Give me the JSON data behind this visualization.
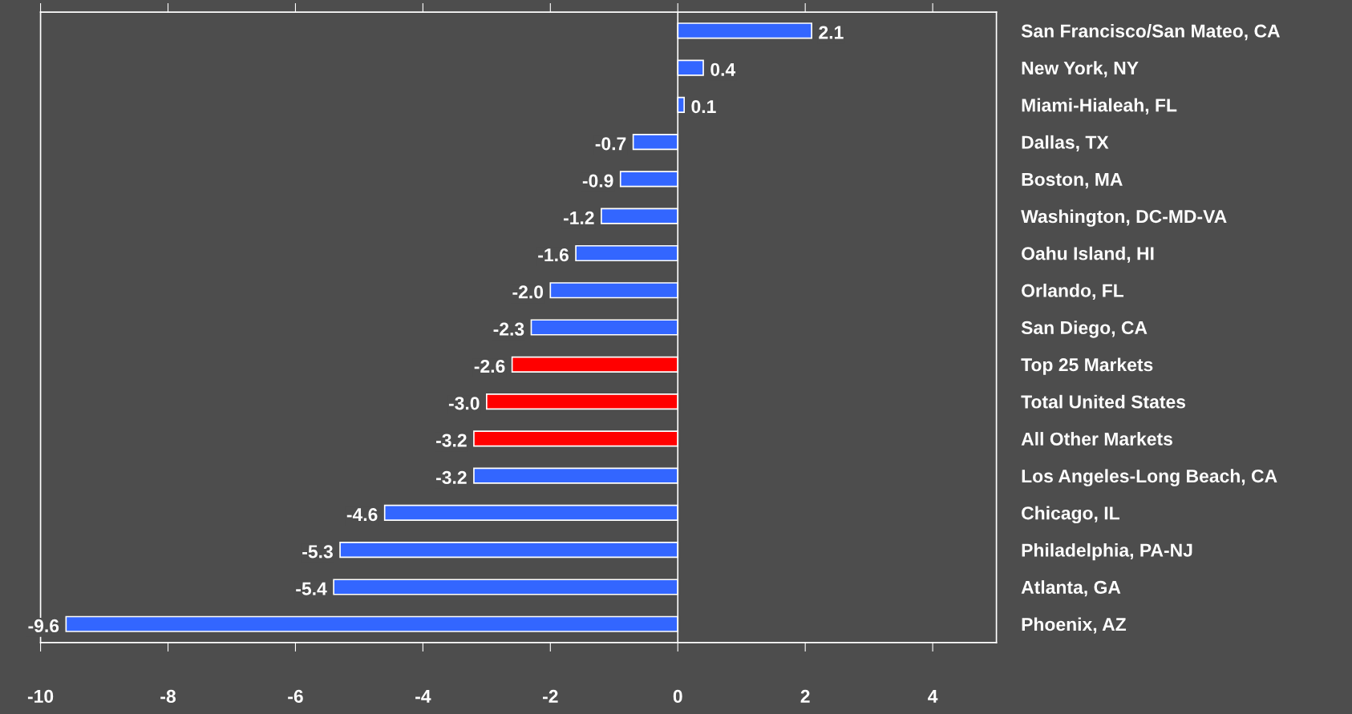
{
  "chart_data": {
    "type": "bar",
    "orientation": "horizontal",
    "categories": [
      "San Francisco/San Mateo, CA",
      "New York, NY",
      "Miami-Hialeah, FL",
      "Dallas, TX",
      "Boston, MA",
      "Washington, DC-MD-VA",
      "Oahu Island, HI",
      "Orlando, FL",
      "San Diego, CA",
      "Top 25 Markets",
      "Total United States",
      "All Other Markets",
      "Los Angeles-Long Beach, CA",
      "Chicago, IL",
      "Philadelphia, PA-NJ",
      "Atlanta, GA",
      "Phoenix, AZ"
    ],
    "values": [
      2.1,
      0.4,
      0.1,
      -0.7,
      -0.9,
      -1.2,
      -1.6,
      -2.0,
      -2.3,
      -2.6,
      -3.0,
      -3.2,
      -3.2,
      -4.6,
      -5.3,
      -5.4,
      -9.6
    ],
    "value_labels": [
      "2.1",
      "0.4",
      "0.1",
      "-0.7",
      "-0.9",
      "-1.2",
      "-1.6",
      "-2.0",
      "-2.3",
      "-2.6",
      "-3.0",
      "-3.2",
      "-3.2",
      "-4.6",
      "-5.3",
      "-5.4",
      "-9.6"
    ],
    "colors": [
      "#3366ff",
      "#3366ff",
      "#3366ff",
      "#3366ff",
      "#3366ff",
      "#3366ff",
      "#3366ff",
      "#3366ff",
      "#3366ff",
      "#ff0000",
      "#ff0000",
      "#ff0000",
      "#3366ff",
      "#3366ff",
      "#3366ff",
      "#3366ff",
      "#3366ff"
    ],
    "xlim": [
      -10,
      5
    ],
    "xticks": [
      -10,
      -8,
      -6,
      -4,
      -2,
      0,
      2,
      4
    ],
    "ref_lines": [
      {
        "axis": "x",
        "value": 0,
        "color": "#ffffff"
      }
    ],
    "legend": false
  }
}
